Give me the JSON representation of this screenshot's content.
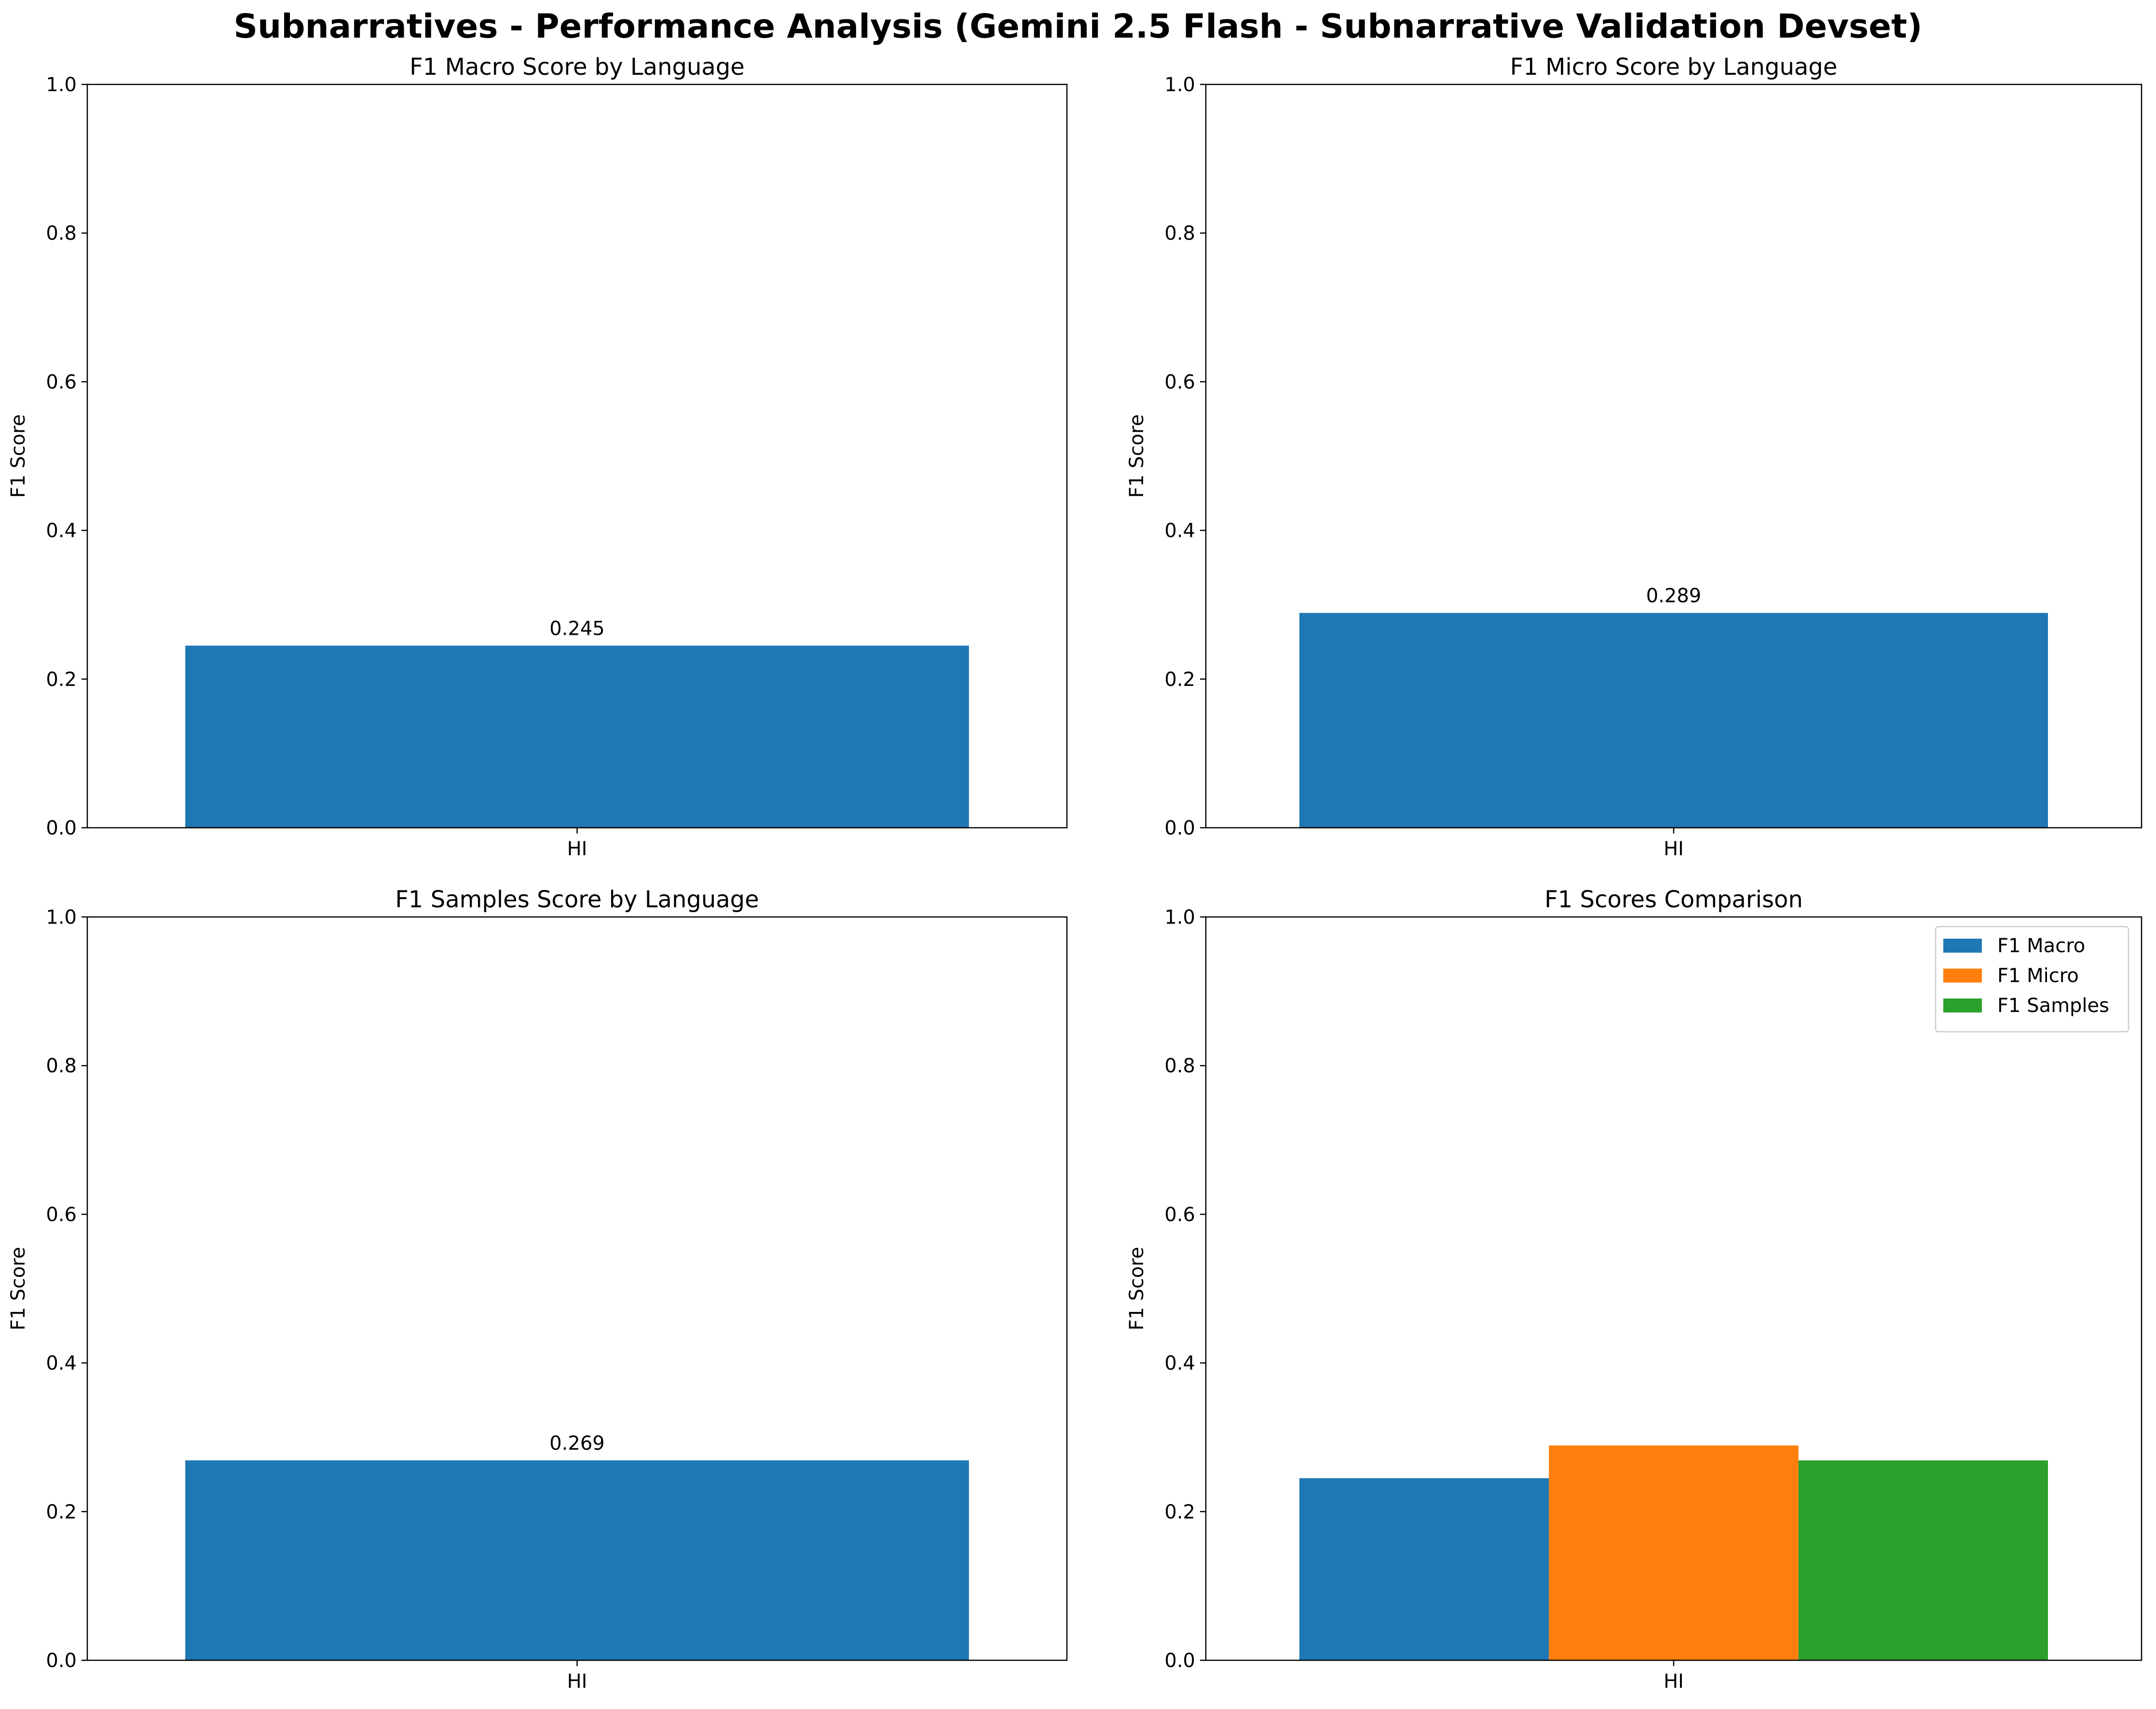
{
  "figure_title": "Subnarratives - Performance Analysis (Gemini 2.5 Flash - Subnarrative Validation Devset)",
  "chart_data": [
    {
      "type": "bar",
      "title": "F1 Macro Score by Language",
      "xlabel": "",
      "ylabel": "F1 Score",
      "categories": [
        "HI"
      ],
      "series": [
        {
          "values": [
            0.245
          ],
          "color": "#1f77b4"
        }
      ],
      "data_labels": [
        "0.245"
      ],
      "ylim": [
        0,
        1
      ],
      "yticks": [
        "0.0",
        "0.2",
        "0.4",
        "0.6",
        "0.8",
        "1.0"
      ],
      "grid": false
    },
    {
      "type": "bar",
      "title": "F1 Micro Score by Language",
      "xlabel": "",
      "ylabel": "F1 Score",
      "categories": [
        "HI"
      ],
      "series": [
        {
          "values": [
            0.289
          ],
          "color": "#1f77b4"
        }
      ],
      "data_labels": [
        "0.289"
      ],
      "ylim": [
        0,
        1
      ],
      "yticks": [
        "0.0",
        "0.2",
        "0.4",
        "0.6",
        "0.8",
        "1.0"
      ],
      "grid": false
    },
    {
      "type": "bar",
      "title": "F1 Samples Score by Language",
      "xlabel": "",
      "ylabel": "F1 Score",
      "categories": [
        "HI"
      ],
      "series": [
        {
          "values": [
            0.269
          ],
          "color": "#1f77b4"
        }
      ],
      "data_labels": [
        "0.269"
      ],
      "ylim": [
        0,
        1
      ],
      "yticks": [
        "0.0",
        "0.2",
        "0.4",
        "0.6",
        "0.8",
        "1.0"
      ],
      "grid": false
    },
    {
      "type": "bar",
      "title": "F1 Scores Comparison",
      "xlabel": "",
      "ylabel": "F1 Score",
      "categories": [
        "HI"
      ],
      "series": [
        {
          "name": "F1 Macro",
          "values": [
            0.245
          ],
          "color": "#1f77b4"
        },
        {
          "name": "F1 Micro",
          "values": [
            0.289
          ],
          "color": "#ff7f0e"
        },
        {
          "name": "F1 Samples",
          "values": [
            0.269
          ],
          "color": "#2ca02c"
        }
      ],
      "ylim": [
        0,
        1
      ],
      "yticks": [
        "0.0",
        "0.2",
        "0.4",
        "0.6",
        "0.8",
        "1.0"
      ],
      "legend": "top-right",
      "grid": false
    }
  ]
}
